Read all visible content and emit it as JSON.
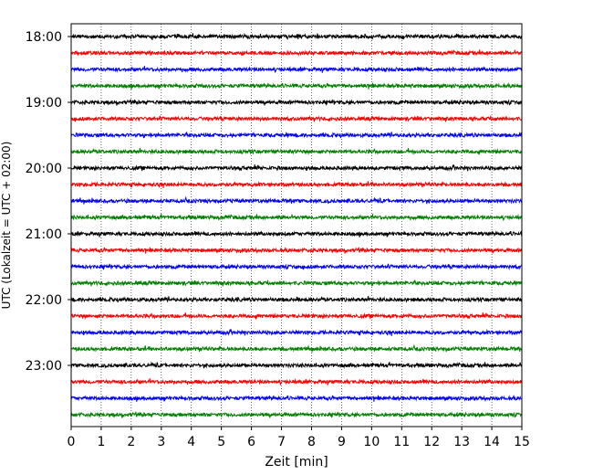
{
  "chart_data": {
    "type": "line",
    "title": "",
    "xlabel": "Zeit  [min]",
    "ylabel": "UTC (Lokalzeit = UTC + 02:00)",
    "xlim": [
      0,
      15
    ],
    "x_ticks": [
      "0",
      "1",
      "2",
      "3",
      "4",
      "5",
      "6",
      "7",
      "8",
      "9",
      "10",
      "11",
      "12",
      "13",
      "14",
      "15"
    ],
    "y_ticks": [
      "18:00",
      "19:00",
      "20:00",
      "21:00",
      "22:00",
      "23:00"
    ],
    "grid": "vertical dotted",
    "trace_interval_min": 15,
    "start_time": "18:00",
    "end_time": "23:45",
    "trace_colors": [
      "#000000",
      "#ff0000",
      "#0000ff",
      "#008000"
    ],
    "traces": [
      {
        "start": "18:00",
        "color": "#000000"
      },
      {
        "start": "18:15",
        "color": "#ff0000"
      },
      {
        "start": "18:30",
        "color": "#0000ff"
      },
      {
        "start": "18:45",
        "color": "#008000"
      },
      {
        "start": "19:00",
        "color": "#000000"
      },
      {
        "start": "19:15",
        "color": "#ff0000"
      },
      {
        "start": "19:30",
        "color": "#0000ff"
      },
      {
        "start": "19:45",
        "color": "#008000"
      },
      {
        "start": "20:00",
        "color": "#000000"
      },
      {
        "start": "20:15",
        "color": "#ff0000"
      },
      {
        "start": "20:30",
        "color": "#0000ff"
      },
      {
        "start": "20:45",
        "color": "#008000"
      },
      {
        "start": "21:00",
        "color": "#000000"
      },
      {
        "start": "21:15",
        "color": "#ff0000"
      },
      {
        "start": "21:30",
        "color": "#0000ff"
      },
      {
        "start": "21:45",
        "color": "#008000"
      },
      {
        "start": "22:00",
        "color": "#000000"
      },
      {
        "start": "22:15",
        "color": "#ff0000"
      },
      {
        "start": "22:30",
        "color": "#0000ff"
      },
      {
        "start": "22:45",
        "color": "#008000"
      },
      {
        "start": "23:00",
        "color": "#000000"
      },
      {
        "start": "23:15",
        "color": "#ff0000"
      },
      {
        "start": "23:30",
        "color": "#0000ff"
      },
      {
        "start": "23:45",
        "color": "#008000"
      }
    ]
  }
}
